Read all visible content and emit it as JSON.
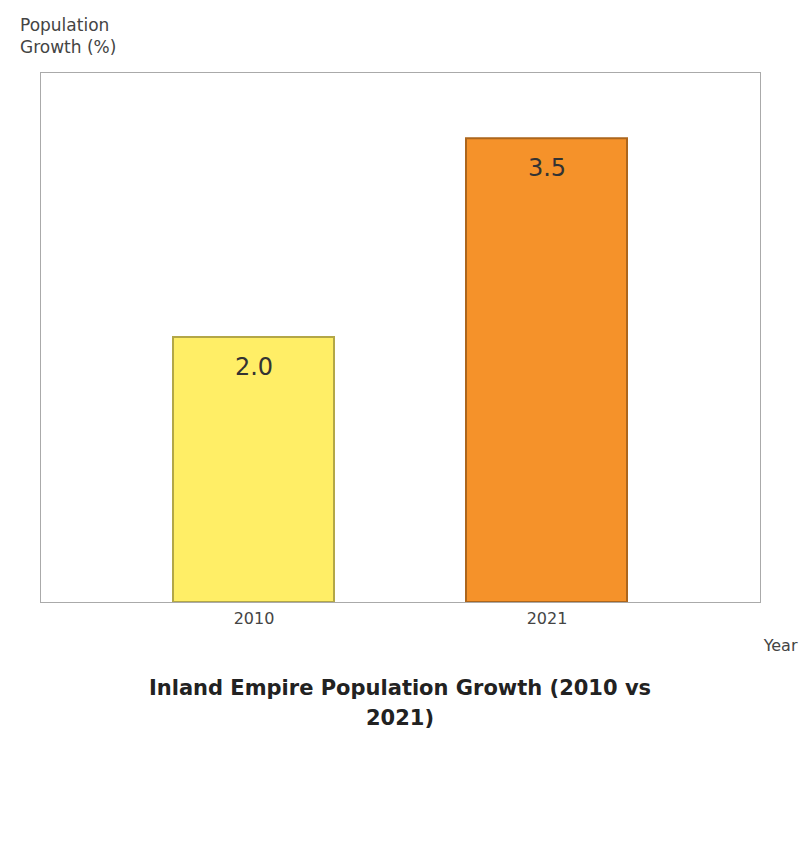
{
  "chart_data": {
    "type": "bar",
    "title": "Inland Empire Population Growth (2010 vs\n2021)",
    "xlabel": "Year",
    "ylabel": "Population\nGrowth (%)",
    "categories": [
      "2010",
      "2021"
    ],
    "values": [
      2.0,
      3.5
    ],
    "value_labels": [
      "2.0",
      "3.5"
    ],
    "colors": [
      "#FFEE66",
      "#F5922A"
    ],
    "ylim": [
      0,
      4.0
    ],
    "data_labels": true,
    "tick_labels": "x",
    "grid": false
  }
}
